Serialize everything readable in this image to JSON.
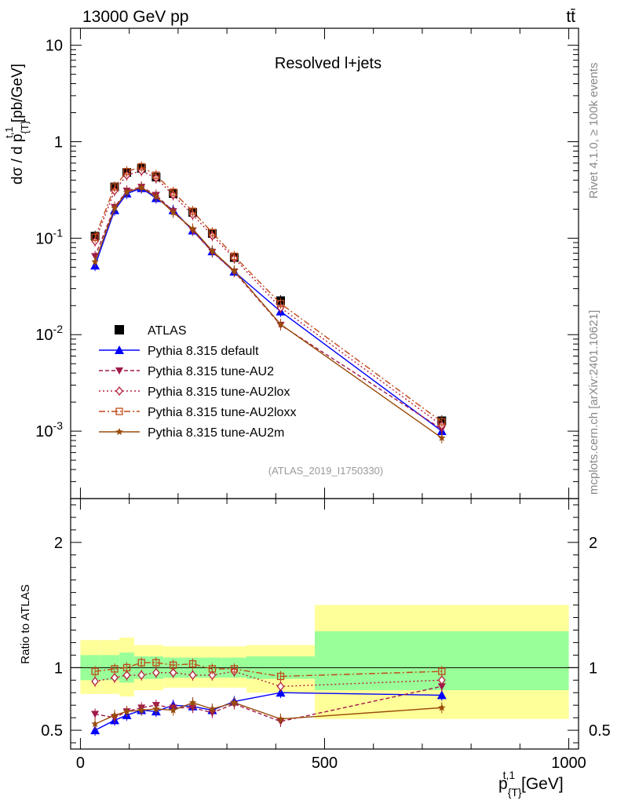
{
  "header": {
    "left": "13000 GeV pp",
    "right": "tt̄"
  },
  "side_labels": {
    "rivet": "Rivet 4.1.0, ≥ 100k events",
    "mcplots": "mcplots.cern.ch [arXiv:2401.10621]"
  },
  "legend_entries": [
    "ATLAS",
    "Pythia 8.315 default",
    "Pythia 8.315 tune-AU2",
    "Pythia 8.315 tune-AU2lox",
    "Pythia 8.315 tune-AU2loxx",
    "Pythia 8.315 tune-AU2m"
  ],
  "colors": {
    "data": "#000000",
    "default": "#0000ff",
    "AU2": "#a0194a",
    "AU2lox": "#b41e3c",
    "AU2loxx": "#c04818",
    "AU2m": "#9a4c0a",
    "band_inner": "#99ff99",
    "band_outer": "#ffff99",
    "watermark": "#888888"
  },
  "chart_data": [
    {
      "type": "line",
      "yscale": "log",
      "title": "Resolved l+jets",
      "analysis_tag": "(ATLAS_2019_I1750330)",
      "ylabel": "dσ / d p_{T}^{t,1} [pb/GeV]",
      "ylim": [
        0.0002,
        15
      ],
      "xlim": [
        -20,
        1020
      ],
      "y_tick_labels": [
        "10",
        "1",
        "10^-1",
        "10^-2",
        "10^-3"
      ],
      "x": [
        30,
        70,
        95,
        125,
        155,
        190,
        230,
        270,
        315,
        410,
        740
      ],
      "series": [
        {
          "name": "ATLAS",
          "values": [
            0.105,
            0.34,
            0.48,
            0.53,
            0.43,
            0.29,
            0.185,
            0.112,
            0.063,
            0.0225,
            0.00128
          ]
        },
        {
          "name": "Pythia 8.315 default",
          "values": [
            0.052,
            0.195,
            0.29,
            0.33,
            0.26,
            0.195,
            0.12,
            0.073,
            0.045,
            0.0174,
            0.001
          ]
        },
        {
          "name": "Pythia 8.315 tune-AU2",
          "values": [
            0.065,
            0.21,
            0.31,
            0.34,
            0.28,
            0.19,
            0.12,
            0.072,
            0.045,
            0.0126,
            0.00105
          ]
        },
        {
          "name": "Pythia 8.315 tune-AU2lox",
          "values": [
            0.093,
            0.31,
            0.45,
            0.5,
            0.42,
            0.28,
            0.175,
            0.106,
            0.062,
            0.019,
            0.00115
          ]
        },
        {
          "name": "Pythia 8.315 tune-AU2loxx",
          "values": [
            0.102,
            0.34,
            0.49,
            0.55,
            0.45,
            0.3,
            0.19,
            0.114,
            0.065,
            0.021,
            0.00125
          ]
        },
        {
          "name": "Pythia 8.315 tune-AU2m",
          "values": [
            0.057,
            0.205,
            0.3,
            0.335,
            0.27,
            0.185,
            0.125,
            0.074,
            0.046,
            0.0128,
            0.00085
          ]
        }
      ]
    },
    {
      "type": "line",
      "ylabel": "Ratio to ATLAS",
      "xlabel": "p_{T}^{t,1} [GeV]",
      "ylim": [
        0.35,
        2.35
      ],
      "xlim": [
        -20,
        1020
      ],
      "y_ticks": [
        0.5,
        1,
        2
      ],
      "y_tick_labels": [
        "0.5",
        "1",
        "2"
      ],
      "x_ticks": [
        0,
        500,
        1000
      ],
      "x_tick_labels": [
        "0",
        "500",
        "1000"
      ],
      "x": [
        30,
        70,
        95,
        125,
        155,
        190,
        230,
        270,
        315,
        410,
        740
      ],
      "series": [
        {
          "name": "Pythia 8.315 default",
          "values": [
            0.5,
            0.58,
            0.62,
            0.66,
            0.65,
            0.7,
            0.69,
            0.66,
            0.73,
            0.8,
            0.78
          ]
        },
        {
          "name": "Pythia 8.315 tune-AU2",
          "values": [
            0.63,
            0.6,
            0.65,
            0.68,
            0.7,
            0.68,
            0.68,
            0.64,
            0.71,
            0.57,
            0.85
          ]
        },
        {
          "name": "Pythia 8.315 tune-AU2lox",
          "values": [
            0.89,
            0.92,
            0.94,
            0.94,
            0.96,
            0.96,
            0.94,
            0.94,
            0.97,
            0.85,
            0.9
          ]
        },
        {
          "name": "Pythia 8.315 tune-AU2loxx",
          "values": [
            0.97,
            0.99,
            1.0,
            1.04,
            1.04,
            1.02,
            1.03,
            0.99,
            0.99,
            0.93,
            0.97
          ]
        },
        {
          "name": "Pythia 8.315 tune-AU2m",
          "values": [
            0.55,
            0.62,
            0.65,
            0.66,
            0.67,
            0.66,
            0.72,
            0.67,
            0.72,
            0.59,
            0.68
          ]
        }
      ],
      "uncertainty_bands": {
        "bin_edges": [
          0,
          40,
          80,
          110,
          140,
          170,
          210,
          250,
          290,
          340,
          480,
          1000
        ],
        "stat_low": [
          0.9,
          0.9,
          0.88,
          0.91,
          0.91,
          0.92,
          0.92,
          0.92,
          0.92,
          0.91,
          0.82
        ],
        "stat_high": [
          1.1,
          1.1,
          1.12,
          1.09,
          1.09,
          1.08,
          1.08,
          1.08,
          1.08,
          1.09,
          1.29
        ],
        "total_low": [
          0.79,
          0.79,
          0.77,
          0.82,
          0.82,
          0.84,
          0.84,
          0.84,
          0.84,
          0.8,
          0.59
        ],
        "total_high": [
          1.22,
          1.22,
          1.24,
          1.18,
          1.18,
          1.17,
          1.17,
          1.17,
          1.17,
          1.18,
          1.5
        ]
      }
    }
  ]
}
